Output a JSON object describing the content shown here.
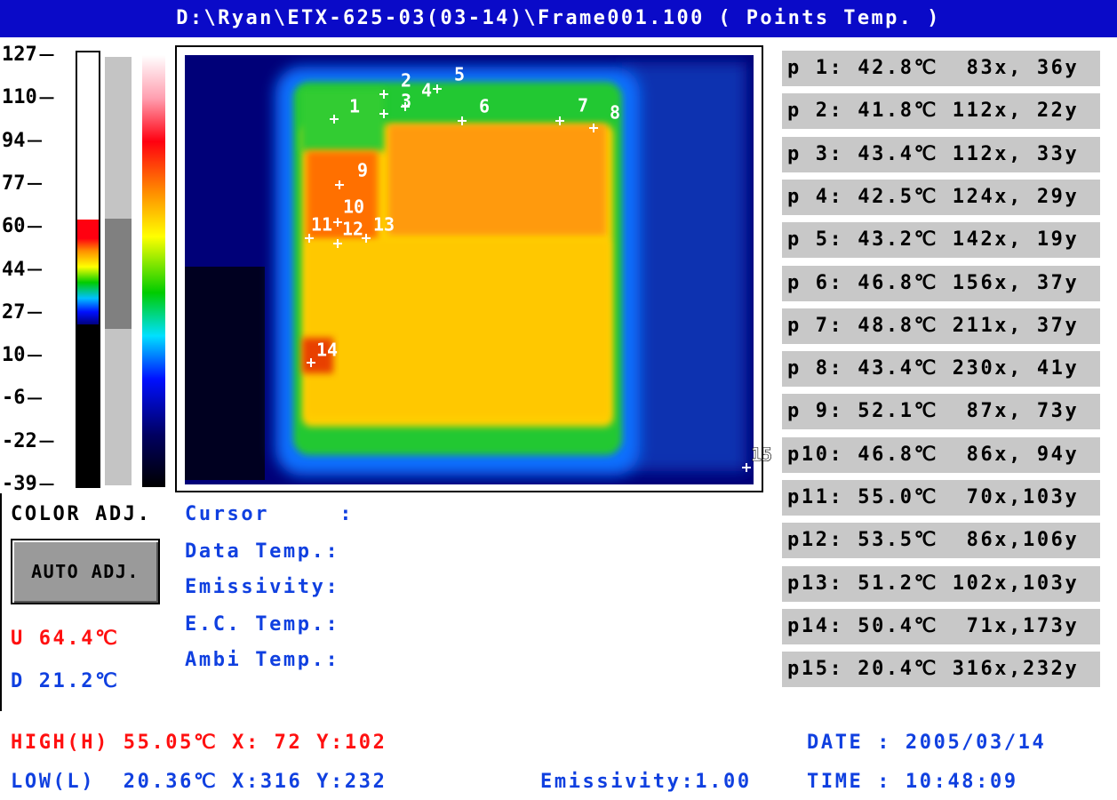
{
  "title": "D:\\Ryan\\ETX-625-03(03-14)\\Frame001.100 ( Points Temp. )",
  "scale": {
    "labels": [
      "127",
      "110",
      "94",
      "77",
      "60",
      "44",
      "27",
      "10",
      "-6",
      "-22",
      "-39"
    ]
  },
  "color_adj": "COLOR ADJ.",
  "auto_adj_button": "AUTO ADJ.",
  "upper": "U 64.4℃",
  "lower": "D 21.2℃",
  "info_labels": [
    "Cursor     :",
    "Data Temp.:",
    "Emissivity:",
    "E.C. Temp.:",
    "Ambi Temp.:"
  ],
  "markers": [
    "1",
    "2",
    "3",
    "4",
    "5",
    "6",
    "7",
    "8",
    "9",
    "10",
    "11",
    "12",
    "13",
    "14",
    "15"
  ],
  "points": [
    "p 1: 42.8℃  83x, 36y",
    "p 2: 41.8℃ 112x, 22y",
    "p 3: 43.4℃ 112x, 33y",
    "p 4: 42.5℃ 124x, 29y",
    "p 5: 43.2℃ 142x, 19y",
    "p 6: 46.8℃ 156x, 37y",
    "p 7: 48.8℃ 211x, 37y",
    "p 8: 43.4℃ 230x, 41y",
    "p 9: 52.1℃  87x, 73y",
    "p10: 46.8℃  86x, 94y",
    "p11: 55.0℃  70x,103y",
    "p12: 53.5℃  86x,106y",
    "p13: 51.2℃ 102x,103y",
    "p14: 50.4℃  71x,173y",
    "p15: 20.4℃ 316x,232y"
  ],
  "footer": {
    "high": "HIGH(H) 55.05℃ X: 72 Y:102",
    "low": "LOW(L)  20.36℃ X:316 Y:232",
    "emissivity": "Emissivity:1.00",
    "date": "DATE : 2005/03/14",
    "time": "TIME : 10:48:09"
  }
}
